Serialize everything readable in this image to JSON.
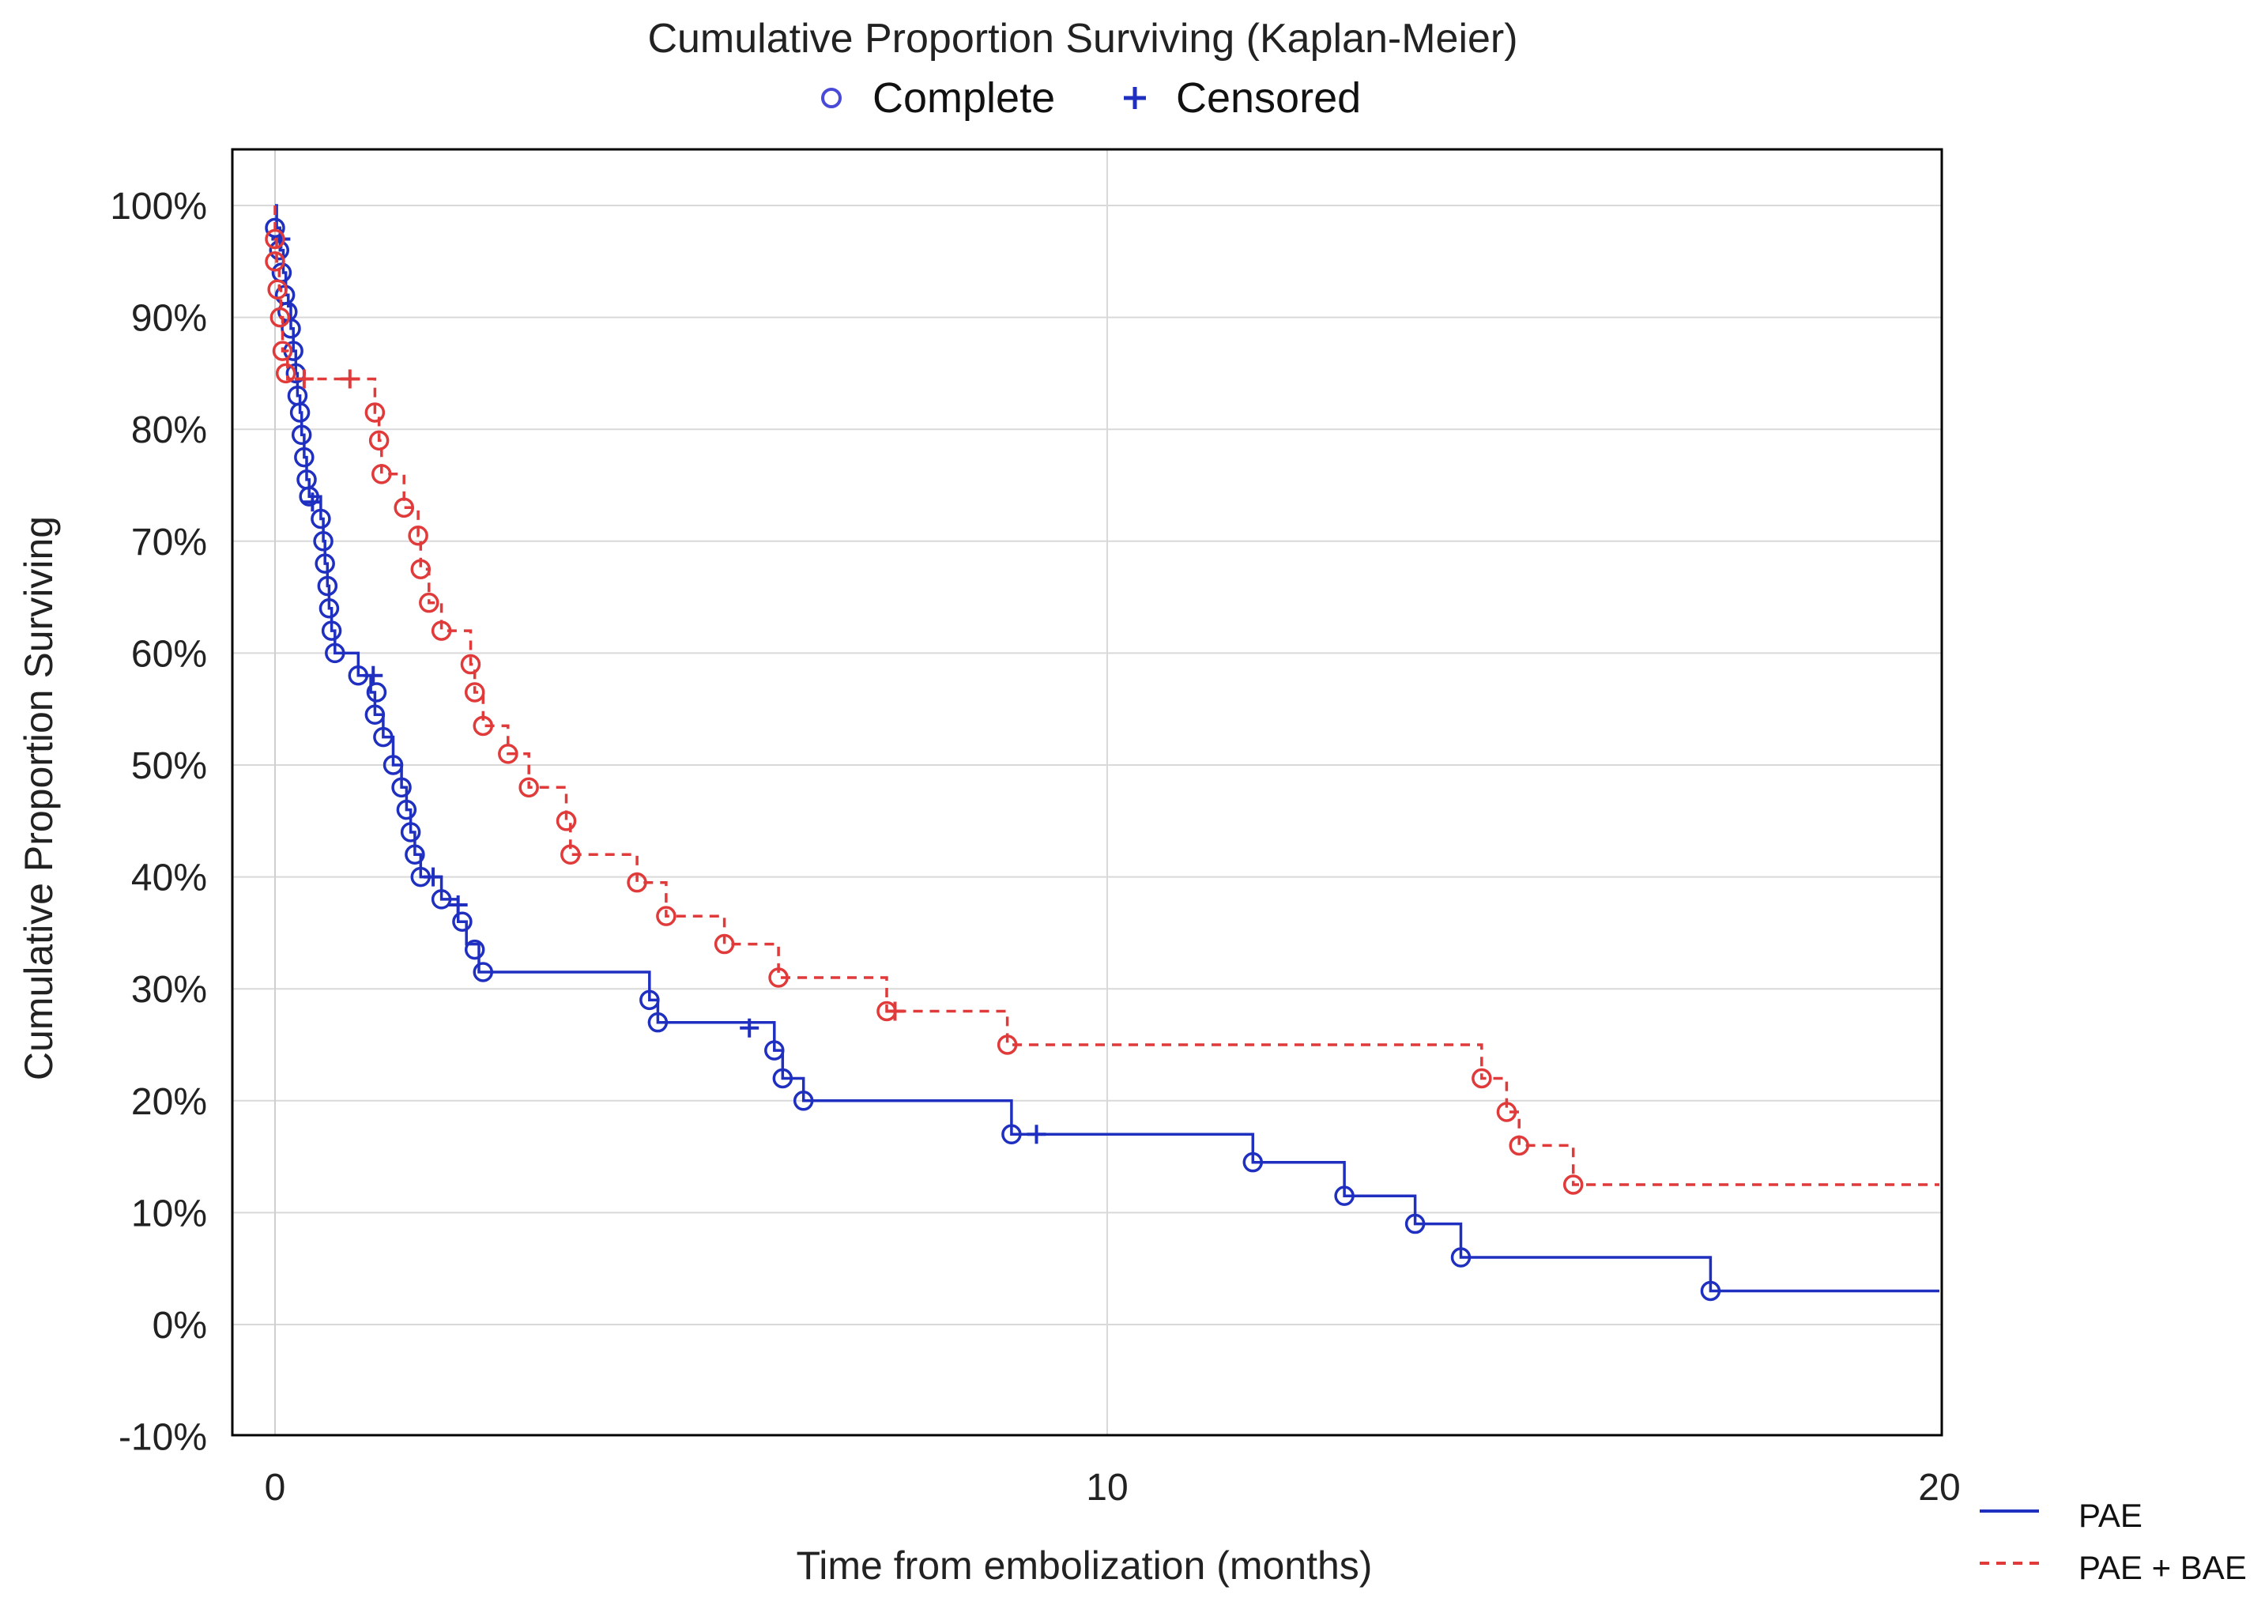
{
  "chart_data": {
    "type": "line",
    "title": "Cumulative Proportion Surviving (Kaplan-Meier)",
    "marker_legend": [
      {
        "label": "Complete",
        "marker": "circle-icon"
      },
      {
        "label": "Censored",
        "marker": "plus-icon"
      }
    ],
    "xlabel": "Time from embolization (months)",
    "ylabel": "Cumulative Proportion Surviving",
    "xlim": [
      -0.5,
      20
    ],
    "ylim": [
      -0.1,
      1.03
    ],
    "x_ticks": [
      0,
      10,
      20
    ],
    "x_tick_labels": [
      "0",
      "10",
      "20"
    ],
    "y_ticks": [
      -0.1,
      0,
      0.1,
      0.2,
      0.3,
      0.4,
      0.5,
      0.6,
      0.7,
      0.8,
      0.9,
      1.0
    ],
    "y_tick_labels": [
      "-10%",
      "0%",
      "10%",
      "20%",
      "30%",
      "40%",
      "50%",
      "60%",
      "70%",
      "80%",
      "90%",
      "100%"
    ],
    "grid": true,
    "series": [
      {
        "name": "PAE",
        "color": "#1f2fbf",
        "line_style": "solid",
        "steps": [
          [
            0,
            1.0
          ],
          [
            0.02,
            0.98
          ],
          [
            0.06,
            0.96
          ],
          [
            0.1,
            0.94
          ],
          [
            0.13,
            0.92
          ],
          [
            0.16,
            0.91
          ],
          [
            0.19,
            0.89
          ],
          [
            0.22,
            0.87
          ],
          [
            0.25,
            0.85
          ],
          [
            0.27,
            0.83
          ],
          [
            0.3,
            0.815
          ],
          [
            0.32,
            0.795
          ],
          [
            0.35,
            0.775
          ],
          [
            0.38,
            0.755
          ],
          [
            0.41,
            0.74
          ],
          [
            0.55,
            0.72
          ],
          [
            0.58,
            0.7
          ],
          [
            0.6,
            0.68
          ],
          [
            0.63,
            0.66
          ],
          [
            0.65,
            0.64
          ],
          [
            0.68,
            0.62
          ],
          [
            0.72,
            0.6
          ],
          [
            1.0,
            0.58
          ],
          [
            1.15,
            0.565
          ],
          [
            1.2,
            0.545
          ],
          [
            1.3,
            0.525
          ],
          [
            1.42,
            0.5
          ],
          [
            1.52,
            0.48
          ],
          [
            1.58,
            0.46
          ],
          [
            1.63,
            0.44
          ],
          [
            1.68,
            0.42
          ],
          [
            1.75,
            0.4
          ],
          [
            2.0,
            0.38
          ],
          [
            2.2,
            0.36
          ],
          [
            2.3,
            0.34
          ],
          [
            2.45,
            0.315
          ],
          [
            4.5,
            0.29
          ],
          [
            4.6,
            0.27
          ],
          [
            6.0,
            0.245
          ],
          [
            6.1,
            0.22
          ],
          [
            6.35,
            0.2
          ],
          [
            8.85,
            0.17
          ],
          [
            11.75,
            0.145
          ],
          [
            12.85,
            0.115
          ],
          [
            13.7,
            0.09
          ],
          [
            14.25,
            0.06
          ],
          [
            17.25,
            0.03
          ],
          [
            20.0,
            0.03
          ]
        ],
        "complete": [
          [
            0,
            0.98
          ],
          [
            0.05,
            0.96
          ],
          [
            0.08,
            0.94
          ],
          [
            0.12,
            0.92
          ],
          [
            0.15,
            0.905
          ],
          [
            0.19,
            0.89
          ],
          [
            0.22,
            0.87
          ],
          [
            0.25,
            0.85
          ],
          [
            0.27,
            0.83
          ],
          [
            0.3,
            0.815
          ],
          [
            0.32,
            0.795
          ],
          [
            0.35,
            0.775
          ],
          [
            0.38,
            0.755
          ],
          [
            0.41,
            0.74
          ],
          [
            0.55,
            0.72
          ],
          [
            0.58,
            0.7
          ],
          [
            0.6,
            0.68
          ],
          [
            0.63,
            0.66
          ],
          [
            0.65,
            0.64
          ],
          [
            0.68,
            0.62
          ],
          [
            0.72,
            0.6
          ],
          [
            1.0,
            0.58
          ],
          [
            1.22,
            0.565
          ],
          [
            1.2,
            0.545
          ],
          [
            1.3,
            0.525
          ],
          [
            1.42,
            0.5
          ],
          [
            1.52,
            0.48
          ],
          [
            1.58,
            0.46
          ],
          [
            1.63,
            0.44
          ],
          [
            1.68,
            0.42
          ],
          [
            1.75,
            0.4
          ],
          [
            2.0,
            0.38
          ],
          [
            2.25,
            0.36
          ],
          [
            2.4,
            0.335
          ],
          [
            2.5,
            0.315
          ],
          [
            4.5,
            0.29
          ],
          [
            4.6,
            0.27
          ],
          [
            6.0,
            0.245
          ],
          [
            6.1,
            0.22
          ],
          [
            6.35,
            0.2
          ],
          [
            8.85,
            0.17
          ],
          [
            11.75,
            0.145
          ],
          [
            12.85,
            0.115
          ],
          [
            13.7,
            0.09
          ],
          [
            14.25,
            0.06
          ],
          [
            17.25,
            0.03
          ]
        ],
        "censored": [
          [
            0.07,
            0.97
          ],
          [
            0.45,
            0.735
          ],
          [
            1.18,
            0.58
          ],
          [
            1.9,
            0.4
          ],
          [
            2.2,
            0.375
          ],
          [
            5.7,
            0.265
          ],
          [
            9.15,
            0.17
          ]
        ]
      },
      {
        "name": "PAE + BAE",
        "color": "#e03a3a",
        "line_style": "dashed",
        "steps": [
          [
            0,
            1.0
          ],
          [
            0.0,
            0.97
          ],
          [
            0.02,
            0.95
          ],
          [
            0.05,
            0.925
          ],
          [
            0.07,
            0.9
          ],
          [
            0.09,
            0.87
          ],
          [
            0.15,
            0.845
          ],
          [
            1.2,
            0.815
          ],
          [
            1.25,
            0.79
          ],
          [
            1.28,
            0.76
          ],
          [
            1.55,
            0.73
          ],
          [
            1.72,
            0.705
          ],
          [
            1.75,
            0.675
          ],
          [
            1.85,
            0.645
          ],
          [
            2.0,
            0.62
          ],
          [
            2.35,
            0.59
          ],
          [
            2.4,
            0.565
          ],
          [
            2.5,
            0.535
          ],
          [
            2.8,
            0.51
          ],
          [
            3.05,
            0.48
          ],
          [
            3.5,
            0.45
          ],
          [
            3.55,
            0.42
          ],
          [
            4.35,
            0.395
          ],
          [
            4.7,
            0.365
          ],
          [
            5.4,
            0.34
          ],
          [
            6.05,
            0.31
          ],
          [
            7.35,
            0.28
          ],
          [
            8.8,
            0.25
          ],
          [
            14.5,
            0.22
          ],
          [
            14.8,
            0.19
          ],
          [
            14.95,
            0.16
          ],
          [
            15.6,
            0.125
          ],
          [
            20.0,
            0.125
          ]
        ],
        "complete": [
          [
            0,
            0.97
          ],
          [
            0.0,
            0.95
          ],
          [
            0.03,
            0.925
          ],
          [
            0.06,
            0.9
          ],
          [
            0.09,
            0.87
          ],
          [
            0.13,
            0.85
          ],
          [
            1.2,
            0.815
          ],
          [
            1.25,
            0.79
          ],
          [
            1.28,
            0.76
          ],
          [
            1.55,
            0.73
          ],
          [
            1.72,
            0.705
          ],
          [
            1.75,
            0.675
          ],
          [
            1.85,
            0.645
          ],
          [
            2.0,
            0.62
          ],
          [
            2.35,
            0.59
          ],
          [
            2.4,
            0.565
          ],
          [
            2.5,
            0.535
          ],
          [
            2.8,
            0.51
          ],
          [
            3.05,
            0.48
          ],
          [
            3.5,
            0.45
          ],
          [
            3.55,
            0.42
          ],
          [
            4.35,
            0.395
          ],
          [
            4.7,
            0.365
          ],
          [
            5.4,
            0.34
          ],
          [
            6.05,
            0.31
          ],
          [
            7.35,
            0.28
          ],
          [
            8.8,
            0.25
          ],
          [
            14.5,
            0.22
          ],
          [
            14.8,
            0.19
          ],
          [
            14.95,
            0.16
          ],
          [
            15.6,
            0.125
          ]
        ],
        "censored": [
          [
            0.35,
            0.845
          ],
          [
            0.9,
            0.845
          ],
          [
            7.45,
            0.28
          ]
        ]
      }
    ],
    "series_legend": [
      {
        "label": "PAE",
        "color": "#1f2fbf",
        "line_style": "solid"
      },
      {
        "label": "PAE + BAE",
        "color": "#e03a3a",
        "line_style": "dashed"
      }
    ]
  }
}
